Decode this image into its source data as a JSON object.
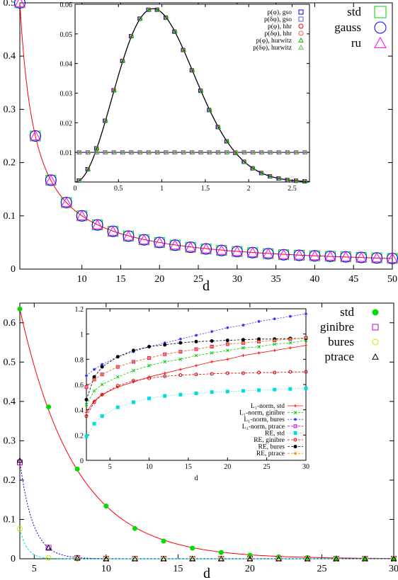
{
  "chart_data": [
    {
      "type": "line",
      "panel": "top-main",
      "xlabel": "d",
      "ylabel": "",
      "xlim": [
        2,
        50
      ],
      "ylim": [
        0,
        0.5
      ],
      "xticks": [
        "10",
        "15",
        "20",
        "25",
        "30",
        "35",
        "40",
        "45",
        "50"
      ],
      "xtick_values": [
        10,
        15,
        20,
        25,
        30,
        35,
        40,
        45,
        50
      ],
      "yticks": [
        "0",
        "0.1",
        "0.2",
        "0.3",
        "0.4",
        "0.5"
      ],
      "ytick_values": [
        0,
        0.1,
        0.2,
        0.3,
        0.4,
        0.5
      ],
      "curve": {
        "color": "#ff0000",
        "formula": "1/d"
      },
      "series": [
        {
          "name": "std",
          "marker": "square",
          "color": "#00cc00",
          "x": [
            2,
            4,
            6,
            8,
            10,
            12,
            14,
            16,
            18,
            20,
            22,
            24,
            26,
            28,
            30,
            32,
            34,
            36,
            38,
            40,
            42,
            44,
            46,
            48,
            50
          ],
          "y": [
            0.5,
            0.25,
            0.167,
            0.125,
            0.1,
            0.083,
            0.071,
            0.062,
            0.055,
            0.05,
            0.045,
            0.041,
            0.038,
            0.035,
            0.033,
            0.031,
            0.029,
            0.027,
            0.026,
            0.025,
            0.024,
            0.023,
            0.022,
            0.021,
            0.02
          ]
        },
        {
          "name": "gauss",
          "marker": "circle",
          "color": "#0000ff",
          "x": [
            2,
            4,
            6,
            8,
            10,
            12,
            14,
            16,
            18,
            20,
            22,
            24,
            26,
            28,
            30,
            32,
            34,
            36,
            38,
            40,
            42,
            44,
            46,
            48,
            50
          ],
          "y": [
            0.5,
            0.25,
            0.167,
            0.125,
            0.1,
            0.083,
            0.071,
            0.062,
            0.055,
            0.05,
            0.045,
            0.041,
            0.038,
            0.035,
            0.033,
            0.031,
            0.029,
            0.027,
            0.026,
            0.025,
            0.024,
            0.023,
            0.022,
            0.021,
            0.02
          ]
        },
        {
          "name": "ru",
          "marker": "triangle",
          "color": "#ff00ff",
          "x": [
            2,
            4,
            6,
            8,
            10,
            12,
            14,
            16,
            18,
            20,
            22,
            24,
            26,
            28,
            30,
            32,
            34,
            36,
            38,
            40,
            42,
            44,
            46,
            48,
            50
          ],
          "y": [
            0.5,
            0.25,
            0.167,
            0.125,
            0.1,
            0.083,
            0.071,
            0.062,
            0.055,
            0.05,
            0.045,
            0.041,
            0.038,
            0.035,
            0.033,
            0.031,
            0.029,
            0.027,
            0.026,
            0.025,
            0.024,
            0.023,
            0.022,
            0.021,
            0.02
          ]
        }
      ],
      "legend": [
        "std",
        "gauss",
        "ru"
      ],
      "legend_position": "top-right"
    },
    {
      "type": "line",
      "panel": "top-inset",
      "xlim": [
        0,
        2.7
      ],
      "ylim": [
        0,
        0.06
      ],
      "xticks": [
        "0",
        "0.5",
        "1",
        "1.5",
        "2",
        "2.5"
      ],
      "xtick_values": [
        0,
        0.5,
        1,
        1.5,
        2,
        2.5
      ],
      "yticks": [
        "0.01",
        "0.02",
        "0.03",
        "0.04",
        "0.05",
        "0.06"
      ],
      "ytick_values": [
        0.01,
        0.02,
        0.03,
        0.04,
        0.05,
        0.06
      ],
      "peak": {
        "x": 0.9,
        "y": 0.0585
      },
      "flat_level": 0.01,
      "series": [
        {
          "name": "p(φ), gso",
          "marker": "square",
          "color": "#0000ff"
        },
        {
          "name": "p(δφ), gso",
          "marker": "square",
          "color": "#5555ff"
        },
        {
          "name": "p(φ), hhr",
          "marker": "circle",
          "color": "#ff0000"
        },
        {
          "name": "p(δφ), hhr",
          "marker": "circle",
          "color": "#ff5555"
        },
        {
          "name": "p(φ), hurwitz",
          "marker": "triangle",
          "color": "#00bb00"
        },
        {
          "name": "p(δφ), hurwitz",
          "marker": "triangle",
          "color": "#55bb55"
        }
      ],
      "legend_position": "top-right"
    },
    {
      "type": "line",
      "panel": "bottom-main",
      "xlabel": "d",
      "ylabel": "",
      "xlim": [
        4,
        30
      ],
      "ylim": [
        0,
        0.65
      ],
      "xticks": [
        "5",
        "10",
        "15",
        "20",
        "25",
        "30"
      ],
      "xtick_values": [
        5,
        10,
        15,
        20,
        25,
        30
      ],
      "yticks": [
        "0",
        "0.1",
        "0.2",
        "0.3",
        "0.4",
        "0.5",
        "0.6"
      ],
      "ytick_values": [
        0,
        0.1,
        0.2,
        0.3,
        0.4,
        0.5,
        0.6
      ],
      "series": [
        {
          "name": "std",
          "marker": "filled-circle",
          "color": "#00dd00",
          "x": [
            4,
            6,
            8,
            10,
            12,
            14,
            16,
            18,
            20,
            22,
            24,
            26,
            28,
            30
          ],
          "y": [
            0.635,
            0.386,
            0.228,
            0.134,
            0.077,
            0.045,
            0.027,
            0.016,
            0.009,
            0.005,
            0.003,
            0.0018,
            0.001,
            0.0006
          ]
        },
        {
          "name": "ginibre",
          "marker": "square",
          "color": "#cc00cc",
          "x": [
            4,
            6,
            8,
            10,
            12,
            14,
            16,
            18,
            20,
            22,
            24,
            26,
            28,
            30
          ],
          "y": [
            0.245,
            0.028,
            0.002,
            0,
            0,
            0,
            0,
            0,
            0,
            0,
            0,
            0,
            0,
            0
          ]
        },
        {
          "name": "bures",
          "marker": "circle",
          "color": "#dddd00",
          "x": [
            4,
            6,
            8,
            10,
            12,
            14,
            16,
            18,
            20,
            22,
            24,
            26,
            28,
            30
          ],
          "y": [
            0.076,
            0.002,
            0,
            0,
            0,
            0,
            0,
            0,
            0,
            0,
            0,
            0,
            0,
            0
          ]
        },
        {
          "name": "ptrace",
          "marker": "triangle",
          "color": "#000000",
          "x": [
            4,
            6,
            8,
            10,
            12,
            14,
            16,
            18,
            20,
            22,
            24,
            26,
            28,
            30
          ],
          "y": [
            0.25,
            0.028,
            0.002,
            0,
            0,
            0,
            0,
            0,
            0,
            0,
            0,
            0,
            0,
            0
          ]
        }
      ],
      "legend": [
        "std",
        "ginibre",
        "bures",
        "ptrace"
      ],
      "legend_position": "top-right"
    },
    {
      "type": "line",
      "panel": "bottom-inset",
      "xlabel": "d",
      "xlim": [
        2,
        30
      ],
      "ylim": [
        0,
        1.2
      ],
      "xticks": [
        "5",
        "10",
        "15",
        "20",
        "25",
        "30"
      ],
      "xtick_values": [
        5,
        10,
        15,
        20,
        25,
        30
      ],
      "yticks": [
        "0",
        "0.2",
        "0.4",
        "0.6",
        "0.8",
        "1",
        "1.2"
      ],
      "ytick_values": [
        0,
        0.2,
        0.4,
        0.6,
        0.8,
        1,
        1.2
      ],
      "series": [
        {
          "name": "L₁-norm, std",
          "color": "#ff0000",
          "marker": "plus",
          "x": [
            2,
            3,
            4,
            6,
            8,
            10,
            12,
            14,
            16,
            18,
            20,
            22,
            24,
            26,
            28,
            30
          ],
          "y": [
            0.38,
            0.47,
            0.52,
            0.58,
            0.62,
            0.66,
            0.69,
            0.72,
            0.75,
            0.78,
            0.8,
            0.83,
            0.85,
            0.87,
            0.89,
            0.91
          ]
        },
        {
          "name": "L₁-norm, ginibre",
          "color": "#00cc00",
          "marker": "x",
          "x": [
            2,
            3,
            4,
            6,
            8,
            10,
            12,
            14,
            16,
            18,
            20,
            22,
            24,
            26,
            28,
            30
          ],
          "y": [
            0.44,
            0.55,
            0.6,
            0.66,
            0.71,
            0.75,
            0.78,
            0.8,
            0.83,
            0.85,
            0.87,
            0.89,
            0.9,
            0.92,
            0.93,
            0.95
          ]
        },
        {
          "name": "L₁-norm, bures",
          "color": "#3333ff",
          "marker": "star",
          "x": [
            2,
            3,
            4,
            6,
            8,
            10,
            12,
            14,
            16,
            18,
            20,
            22,
            24,
            26,
            28,
            30
          ],
          "y": [
            0.67,
            0.72,
            0.76,
            0.82,
            0.86,
            0.9,
            0.93,
            0.96,
            0.99,
            1.02,
            1.05,
            1.07,
            1.1,
            1.12,
            1.14,
            1.16
          ]
        },
        {
          "name": "L₁-norm, ptrace",
          "color": "#cc00cc",
          "marker": "square",
          "x": [
            2,
            3,
            4,
            6,
            8,
            10,
            12,
            14,
            16,
            18,
            20,
            22,
            24,
            26,
            28,
            30
          ],
          "y": [
            0.58,
            0.64,
            0.68,
            0.74,
            0.78,
            0.81,
            0.84,
            0.86,
            0.88,
            0.9,
            0.92,
            0.93,
            0.94,
            0.95,
            0.96,
            0.97
          ]
        },
        {
          "name": "RE, std",
          "color": "#00dddd",
          "marker": "filled-square",
          "x": [
            2,
            3,
            4,
            6,
            8,
            10,
            12,
            14,
            16,
            18,
            20,
            22,
            24,
            26,
            28,
            30
          ],
          "y": [
            0.19,
            0.29,
            0.35,
            0.42,
            0.46,
            0.49,
            0.51,
            0.52,
            0.53,
            0.54,
            0.545,
            0.55,
            0.555,
            0.56,
            0.565,
            0.57
          ]
        },
        {
          "name": "RE, ginibre",
          "color": "#cc0000",
          "marker": "circle",
          "x": [
            2,
            3,
            4,
            6,
            8,
            10,
            12,
            14,
            16,
            18,
            20,
            22,
            24,
            26,
            28,
            30
          ],
          "y": [
            0.35,
            0.46,
            0.52,
            0.59,
            0.63,
            0.65,
            0.665,
            0.675,
            0.68,
            0.685,
            0.69,
            0.69,
            0.695,
            0.695,
            0.7,
            0.7
          ]
        },
        {
          "name": "RE, bures",
          "color": "#000000",
          "marker": "filled-circle",
          "x": [
            2,
            3,
            4,
            6,
            8,
            10,
            12,
            14,
            16,
            18,
            20,
            22,
            24,
            26,
            28,
            30
          ],
          "y": [
            0.48,
            0.66,
            0.74,
            0.82,
            0.87,
            0.9,
            0.915,
            0.93,
            0.94,
            0.945,
            0.95,
            0.955,
            0.96,
            0.96,
            0.965,
            0.965
          ]
        },
        {
          "name": "RE, ptrace",
          "color": "#ff8800",
          "marker": "star",
          "x": [
            2,
            3,
            4,
            6,
            8,
            10,
            12,
            14,
            16,
            18,
            20,
            22,
            24,
            26,
            28,
            30
          ],
          "y": [
            0.58,
            0.64,
            0.68,
            0.74,
            0.78,
            0.81,
            0.84,
            0.86,
            0.88,
            0.9,
            0.92,
            0.93,
            0.94,
            0.95,
            0.96,
            0.97
          ]
        }
      ],
      "legend_position": "bottom-right"
    }
  ]
}
